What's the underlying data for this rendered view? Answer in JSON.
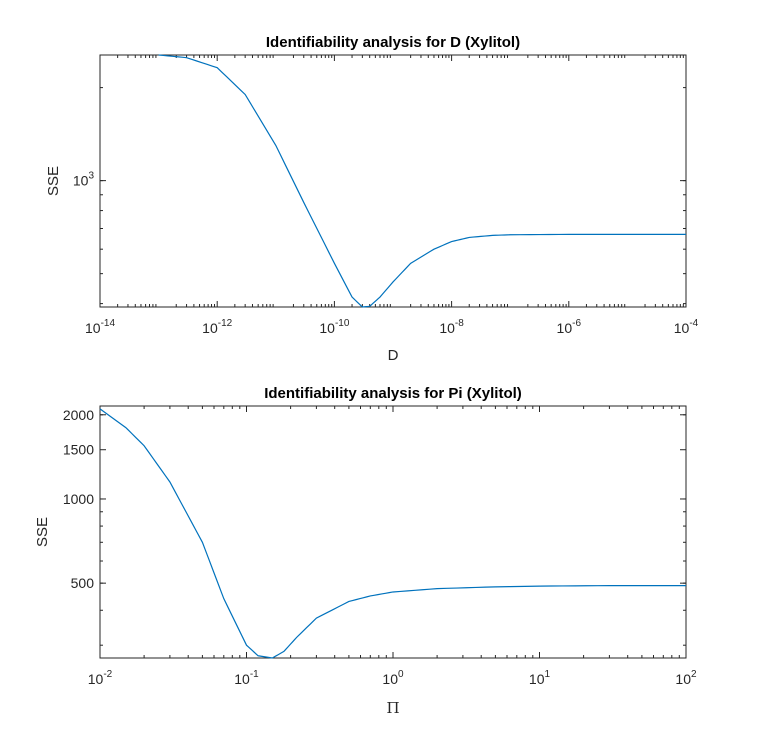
{
  "chart_data": [
    {
      "type": "line",
      "title": "Identifiability analysis for D (Xylitol)",
      "xlabel": "D",
      "ylabel": "SSE",
      "xscale": "log",
      "yscale": "log",
      "xlim": [
        1e-14,
        0.0001
      ],
      "ylim": [
        390,
        2550
      ],
      "grid": false,
      "x_ticks": [
        {
          "base": "10",
          "exp": "-14",
          "value": 1e-14
        },
        {
          "base": "10",
          "exp": "-12",
          "value": 1e-12
        },
        {
          "base": "10",
          "exp": "-10",
          "value": 1e-10
        },
        {
          "base": "10",
          "exp": "-8",
          "value": 1e-08
        },
        {
          "base": "10",
          "exp": "-6",
          "value": 1e-06
        },
        {
          "base": "10",
          "exp": "-4",
          "value": 0.0001
        }
      ],
      "y_ticks": [
        {
          "base": "10",
          "exp": "3",
          "value": 1000
        }
      ],
      "series": [
        {
          "color": "#0072BD",
          "x": [
            1e-13,
            3e-13,
            1e-12,
            3e-12,
            1e-11,
            3e-11,
            1e-10,
            2e-10,
            3e-10,
            4e-10,
            6e-10,
            1e-09,
            2e-09,
            5e-09,
            1e-08,
            2e-08,
            5e-08,
            1e-07,
            1e-06,
            1e-05,
            0.0001
          ],
          "y": [
            2550,
            2500,
            2320,
            1900,
            1300,
            850,
            540,
            420,
            390,
            392,
            420,
            470,
            540,
            600,
            635,
            655,
            665,
            668,
            670,
            670,
            670
          ]
        }
      ]
    },
    {
      "type": "line",
      "title": "Identifiability analysis for Pi (Xylitol)",
      "xlabel": "Π",
      "ylabel": "SSE",
      "xscale": "log",
      "yscale": "log",
      "xlim": [
        0.01,
        100
      ],
      "ylim": [
        270,
        2150
      ],
      "grid": false,
      "x_ticks": [
        {
          "base": "10",
          "exp": "-2",
          "value": 0.01
        },
        {
          "base": "10",
          "exp": "-1",
          "value": 0.1
        },
        {
          "base": "10",
          "exp": "0",
          "value": 1
        },
        {
          "base": "10",
          "exp": "1",
          "value": 10
        },
        {
          "base": "10",
          "exp": "2",
          "value": 100
        }
      ],
      "y_ticks": [
        {
          "label": "500",
          "value": 500
        },
        {
          "label": "1000",
          "value": 1000
        },
        {
          "label": "1500",
          "value": 1500
        },
        {
          "label": "2000",
          "value": 2000
        }
      ],
      "series": [
        {
          "color": "#0072BD",
          "x": [
            0.01,
            0.015,
            0.02,
            0.03,
            0.05,
            0.07,
            0.1,
            0.12,
            0.15,
            0.18,
            0.22,
            0.3,
            0.5,
            0.7,
            1,
            2,
            5,
            10,
            30,
            100
          ],
          "y": [
            2100,
            1800,
            1550,
            1150,
            700,
            440,
            300,
            275,
            270,
            285,
            320,
            375,
            430,
            450,
            465,
            478,
            485,
            488,
            490,
            490
          ]
        }
      ]
    }
  ]
}
